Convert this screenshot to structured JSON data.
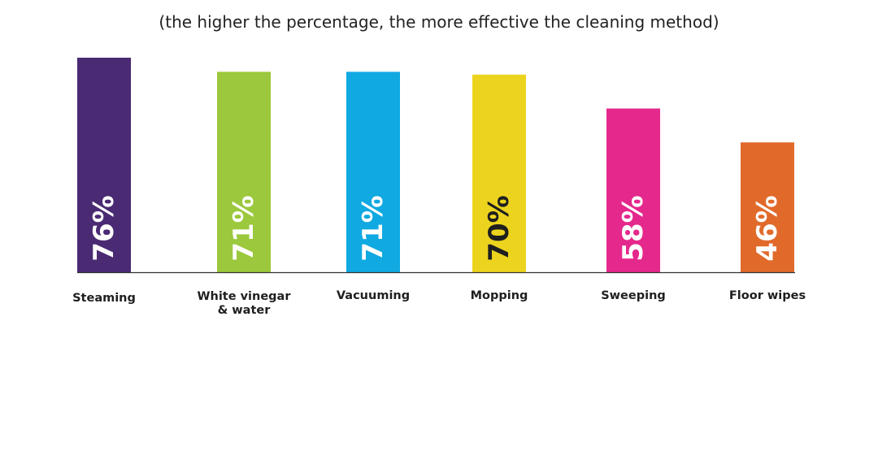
{
  "chart_data": {
    "type": "bar",
    "subtitle": "(the higher the percentage, the more effective the cleaning method)",
    "categories": [
      [
        "Steaming"
      ],
      [
        "White vinegar",
        "& water"
      ],
      [
        "Vacuuming"
      ],
      [
        "Mopping"
      ],
      [
        "Sweeping"
      ],
      [
        "Floor wipes"
      ]
    ],
    "values": [
      76,
      71,
      71,
      70,
      58,
      46
    ],
    "value_labels": [
      "76%",
      "71%",
      "71%",
      "70%",
      "58%",
      "46%"
    ],
    "colors": [
      "#4a2a73",
      "#9bc83c",
      "#10a9e1",
      "#ecd41e",
      "#e5288c",
      "#e16a2b"
    ],
    "label_colors": [
      "#ffffff",
      "#ffffff",
      "#ffffff",
      "#1f1f1f",
      "#ffffff",
      "#ffffff"
    ],
    "unit": "%",
    "grid": false,
    "legend": "none"
  }
}
